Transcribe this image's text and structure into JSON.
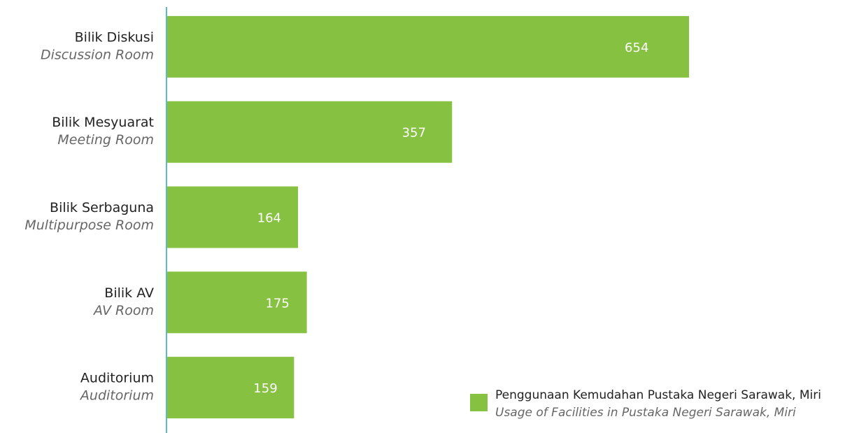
{
  "chart_data": {
    "type": "bar",
    "categories": [
      "Bilik Diskusi",
      "Bilik Mesyuarat",
      "Bilik Serbaguna",
      "Bilik AV",
      "Auditorium"
    ],
    "category_translations": [
      "Discussion Room",
      "Meeting Room",
      "Multipurpose Room",
      "AV Room",
      "Auditorium"
    ],
    "series": [
      {
        "name": "Penggunaan Kemudahan Pustaka Negeri Sarawak, Miri",
        "name_translation": "Usage of Facilities in Pustaka Negeri Sarawak, Miri",
        "color": "#86c142",
        "values": [
          654,
          357,
          164,
          175,
          159
        ]
      }
    ]
  }
}
